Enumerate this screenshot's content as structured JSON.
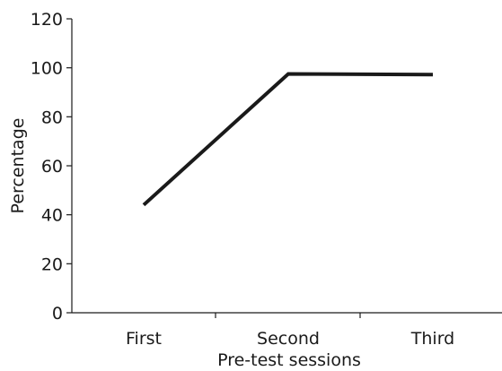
{
  "chart_data": {
    "type": "line",
    "categories": [
      "First",
      "Second",
      "Third"
    ],
    "series": [
      {
        "values": [
          44,
          97.5,
          97.2
        ]
      }
    ],
    "xlabel": "Pre-test sessions",
    "ylabel": "Percentage",
    "ylim": [
      0,
      120
    ],
    "yticks": [
      0,
      20,
      40,
      60,
      80,
      100,
      120
    ],
    "grid": false,
    "legend": "none",
    "line_color": "#1a1a1a"
  }
}
